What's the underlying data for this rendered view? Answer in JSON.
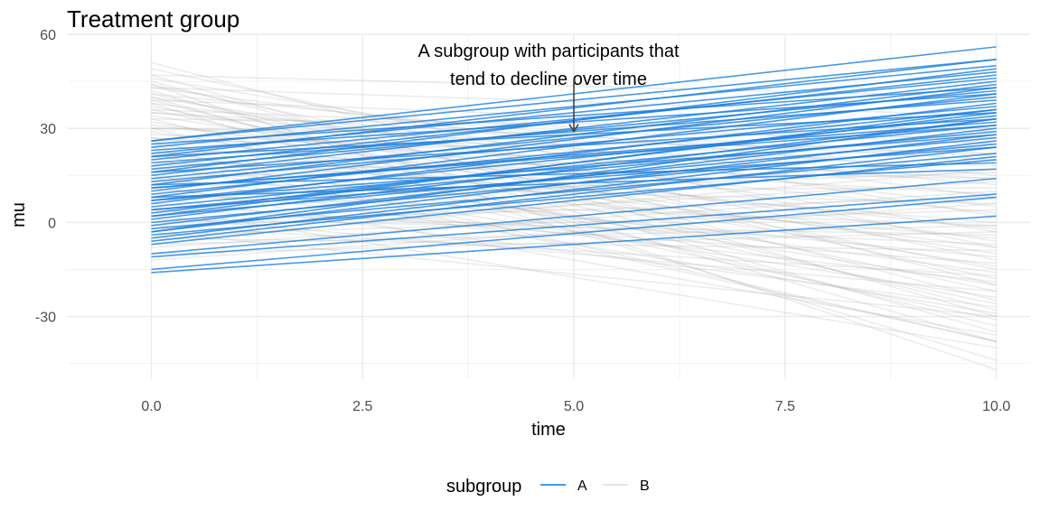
{
  "chart_data": {
    "type": "line",
    "title": "Treatment group",
    "xlabel": "time",
    "ylabel": "mu",
    "xlim": [
      -1.0,
      10.4
    ],
    "ylim": [
      -50,
      60
    ],
    "x_ticks": [
      0.0,
      2.5,
      5.0,
      7.5,
      10.0
    ],
    "x_tick_labels": [
      "0.0",
      "2.5",
      "5.0",
      "7.5",
      "10.0"
    ],
    "y_ticks": [
      -30,
      0,
      30,
      60
    ],
    "y_tick_labels": [
      "-30",
      "0",
      "30",
      "60"
    ],
    "grid": true,
    "legend": {
      "position": "bottom",
      "title": "subgroup",
      "entries": [
        {
          "label": "A",
          "color": "#1a80e0"
        },
        {
          "label": "B",
          "color": "#aaaaaa"
        }
      ]
    },
    "annotation": {
      "lines": [
        "A subgroup with participants that",
        "tend to decline over time"
      ],
      "arrow_from": [
        5.0,
        46
      ],
      "arrow_to": [
        5.0,
        29
      ]
    },
    "series": [
      {
        "name": "A",
        "color": "#1a80e0",
        "note": "each segment is one participant: [mu at time 0, mu at time 10]",
        "segments": [
          [
            -16,
            2
          ],
          [
            -15,
            8
          ],
          [
            -11,
            9
          ],
          [
            -10,
            14
          ],
          [
            -7,
            21
          ],
          [
            -6,
            24
          ],
          [
            -5,
            26
          ],
          [
            -4,
            20
          ],
          [
            -3,
            28
          ],
          [
            -2,
            22
          ],
          [
            -1,
            30
          ],
          [
            0,
            25
          ],
          [
            1,
            33
          ],
          [
            2,
            27
          ],
          [
            3,
            35
          ],
          [
            4,
            29
          ],
          [
            5,
            31
          ],
          [
            6,
            38
          ],
          [
            7,
            34
          ],
          [
            8,
            41
          ],
          [
            9,
            36
          ],
          [
            10,
            43
          ],
          [
            11,
            32
          ],
          [
            12,
            44
          ],
          [
            13,
            37
          ],
          [
            14,
            40
          ],
          [
            15,
            45
          ],
          [
            16,
            33
          ],
          [
            17,
            42
          ],
          [
            18,
            47
          ],
          [
            19,
            39
          ],
          [
            20,
            46
          ],
          [
            21,
            35
          ],
          [
            22,
            48
          ],
          [
            23,
            41
          ],
          [
            24,
            50
          ],
          [
            25,
            43
          ],
          [
            26,
            52
          ],
          [
            12,
            19
          ],
          [
            8,
            17
          ],
          [
            26,
            56
          ],
          [
            21,
            52
          ],
          [
            16,
            49
          ],
          [
            11,
            31
          ],
          [
            7,
            28
          ],
          [
            4,
            24
          ],
          [
            2,
            36
          ],
          [
            -3,
            33
          ]
        ]
      },
      {
        "name": "B",
        "color": "#aaaaaa",
        "note": "each segment is one participant: [mu at time 0, mu at time 10]",
        "segments": [
          [
            51,
            -20
          ],
          [
            49,
            -8
          ],
          [
            47,
            -30
          ],
          [
            46,
            2
          ],
          [
            45,
            -25
          ],
          [
            44,
            -12
          ],
          [
            43,
            8
          ],
          [
            42,
            -35
          ],
          [
            41,
            -18
          ],
          [
            40,
            -3
          ],
          [
            39,
            -28
          ],
          [
            38,
            5
          ],
          [
            37,
            -15
          ],
          [
            36,
            -22
          ],
          [
            35,
            12
          ],
          [
            34,
            -6
          ],
          [
            33,
            -33
          ],
          [
            32,
            -10
          ],
          [
            31,
            3
          ],
          [
            30,
            -26
          ],
          [
            29,
            -14
          ],
          [
            28,
            18
          ],
          [
            27,
            -2
          ],
          [
            26,
            -31
          ],
          [
            25,
            -8
          ],
          [
            24,
            9
          ],
          [
            23,
            -20
          ],
          [
            22,
            -38
          ],
          [
            21,
            0
          ],
          [
            20,
            -16
          ],
          [
            19,
            14
          ],
          [
            18,
            -24
          ],
          [
            17,
            -5
          ],
          [
            16,
            22
          ],
          [
            15,
            -29
          ],
          [
            14,
            -11
          ],
          [
            13,
            6
          ],
          [
            12,
            -36
          ],
          [
            11,
            -19
          ],
          [
            10,
            11
          ],
          [
            9,
            -1
          ],
          [
            8,
            -27
          ],
          [
            7,
            16
          ],
          [
            6,
            -13
          ],
          [
            5,
            -40
          ],
          [
            4,
            -7
          ],
          [
            3,
            20
          ],
          [
            2,
            -22
          ],
          [
            1,
            -4
          ],
          [
            0,
            8
          ],
          [
            -1,
            -17
          ],
          [
            -2,
            13
          ],
          [
            -3,
            -30
          ],
          [
            -4,
            4
          ],
          [
            -5,
            -9
          ],
          [
            -6,
            17
          ],
          [
            -7,
            -1
          ],
          [
            -8,
            10
          ],
          [
            -10,
            -3
          ],
          [
            -12,
            6
          ],
          [
            44,
            -47
          ],
          [
            40,
            -38
          ],
          [
            36,
            25
          ],
          [
            33,
            30
          ],
          [
            30,
            22
          ],
          [
            27,
            14
          ],
          [
            24,
            -38
          ],
          [
            41,
            15
          ],
          [
            38,
            -44
          ],
          [
            35,
            20
          ],
          [
            47,
            40
          ],
          [
            43,
            34
          ],
          [
            39,
            29
          ],
          [
            30,
            27
          ],
          [
            26,
            24
          ],
          [
            22,
            28
          ],
          [
            18,
            26
          ],
          [
            14,
            24
          ]
        ]
      }
    ]
  }
}
